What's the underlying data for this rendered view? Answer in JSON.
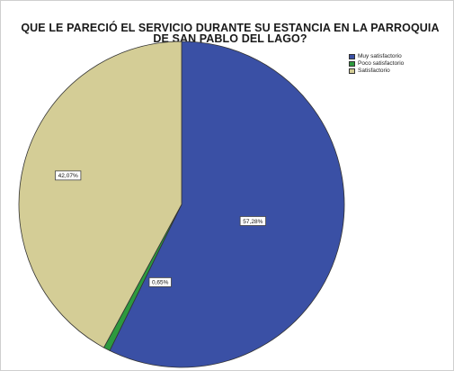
{
  "chart_data": {
    "type": "pie",
    "title": "QUE LE PARECIÓ EL SERVICIO DURANTE SU ESTANCIA EN LA PARROQUIA\nDE SAN PABLO DEL LAGO?",
    "categories": [
      "Muy satisfactorio",
      "Poco satisfactorio",
      "Satisfactorio"
    ],
    "values": [
      57.28,
      0.65,
      42.07
    ],
    "labels": [
      "57,28%",
      "0,65%",
      "42,07%"
    ],
    "colors": [
      "#3a50a5",
      "#2c9a3e",
      "#d4cd96"
    ],
    "legend_position": "top-right"
  }
}
